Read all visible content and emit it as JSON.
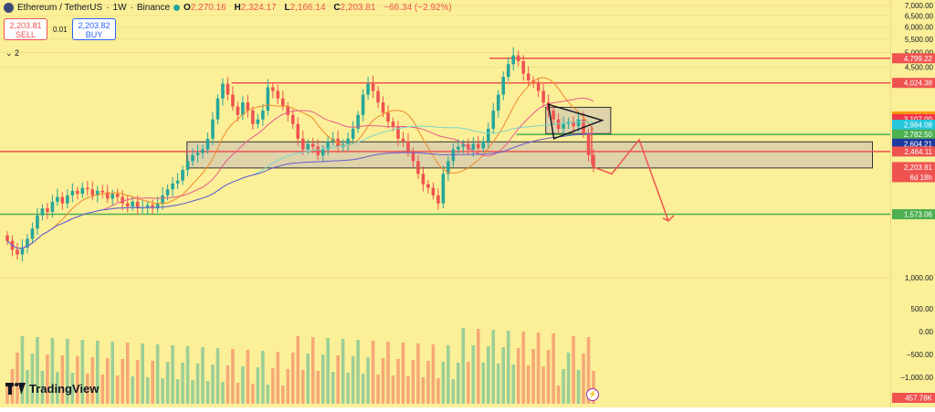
{
  "header": {
    "symbol": "Ethereum / TetherUS",
    "interval": "1W",
    "exchange": "Binance",
    "separator": " · ",
    "open_label": "O",
    "open": "2,270.16",
    "high_label": "H",
    "high": "2,324.17",
    "low_label": "L",
    "low": "2,166.14",
    "close_label": "C",
    "close": "2,203.81",
    "change": "−66.34 (−2.92%)"
  },
  "trade": {
    "sell_price": "2,203.81",
    "sell_label": "SELL",
    "spread": "0.01",
    "buy_price": "2,203.82",
    "buy_label": "BUY"
  },
  "indicators_toggle": "⌄ 2",
  "branding": "TradingView",
  "colors": {
    "background": "#fbef98",
    "up": "#26a69a",
    "down": "#ef5350",
    "resistance": "#ef5350",
    "support": "#4caf50"
  },
  "chart_data": {
    "type": "candlestick",
    "price_axis": {
      "ticks": [
        7000,
        6500,
        6000,
        5500,
        5000,
        4500,
        1000,
        500
      ],
      "tick_labels": [
        "7,000.00",
        "6,500.00",
        "6,000.00",
        "5,500.00",
        "5,000.00",
        "4,500.00",
        "1,000.00",
        "500.00"
      ],
      "log_scale": true
    },
    "volume_axis": {
      "ticks": [
        0,
        -500,
        -1000
      ],
      "tick_labels": [
        "0.00",
        "−500.00",
        "−1,000.00"
      ]
    },
    "price_labels": [
      {
        "value": 4799.22,
        "text": "4,799.22",
        "color": "#ef5350"
      },
      {
        "value": 4024.38,
        "text": "4,024.38",
        "color": "#ef5350"
      },
      {
        "value": 3163.66,
        "text": "3,163.66",
        "color": "#ff9800"
      },
      {
        "value": 3107.0,
        "text": "3,107.00",
        "color": "#f23645"
      },
      {
        "value": 2984.08,
        "text": "2,984.08",
        "color": "#26c6da"
      },
      {
        "value": 2782.5,
        "text": "2,782.50",
        "color": "#4caf50"
      },
      {
        "value": 2604.21,
        "text": "2,604.21",
        "color": "#1e3a9e"
      },
      {
        "value": 2464.11,
        "text": "2,464.11",
        "color": "#ef5350"
      },
      {
        "value": 2203.81,
        "text": "2,203.81",
        "color": "#ef5350",
        "sub": "6d 18h"
      },
      {
        "value": 1573.06,
        "text": "1,573.06",
        "color": "#4caf50"
      }
    ],
    "volume_label": {
      "text": "457.78K",
      "color": "#ef5350"
    },
    "levels": [
      {
        "value": 4799.22,
        "color": "#ef5350",
        "from": 0.55,
        "to": 1.0
      },
      {
        "value": 4024.38,
        "color": "#ef5350",
        "from": 0.26,
        "to": 1.0
      },
      {
        "value": 2464.11,
        "color": "#ef5350",
        "from": 0.0,
        "to": 1.0
      },
      {
        "value": 2782.5,
        "color": "#4caf50",
        "from": 0.58,
        "to": 1.0
      },
      {
        "value": 1573.06,
        "color": "#4caf50",
        "from": 0.0,
        "to": 1.0
      }
    ],
    "zones": [
      {
        "low": 2190,
        "high": 2640,
        "from": 0.21,
        "to": 0.98
      },
      {
        "low": 2800,
        "high": 3380,
        "from": 0.613,
        "to": 0.686
      }
    ],
    "closes": [
      1300,
      1220,
      1180,
      1240,
      1320,
      1420,
      1560,
      1640,
      1600,
      1720,
      1780,
      1700,
      1800,
      1860,
      1820,
      1900,
      1880,
      1800,
      1860,
      1840,
      1760,
      1820,
      1780,
      1700,
      1660,
      1720,
      1640,
      1650,
      1680,
      1640,
      1700,
      1800,
      1880,
      1960,
      2000,
      2160,
      2300,
      2400,
      2440,
      2500,
      2700,
      3100,
      3600,
      4000,
      3700,
      3400,
      3200,
      3500,
      3300,
      3000,
      3100,
      3300,
      3900,
      3800,
      3600,
      3400,
      3200,
      3000,
      2700,
      2500,
      2600,
      2550,
      2400,
      2500,
      2650,
      2700,
      2550,
      2600,
      2700,
      2900,
      3200,
      3700,
      4000,
      3800,
      3500,
      3250,
      3050,
      2950,
      2700,
      2650,
      2450,
      2300,
      2100,
      1950,
      1900,
      1800,
      1700,
      2100,
      2300,
      2500,
      2550,
      2600,
      2500,
      2600,
      2520,
      2650,
      2900,
      3300,
      3700,
      4200,
      4600,
      4900,
      4700,
      4300,
      4100,
      4000,
      3800,
      3500,
      3300,
      3100,
      2900,
      3000,
      3050,
      2950,
      3100,
      2800,
      2400,
      2203.81
    ]
  }
}
